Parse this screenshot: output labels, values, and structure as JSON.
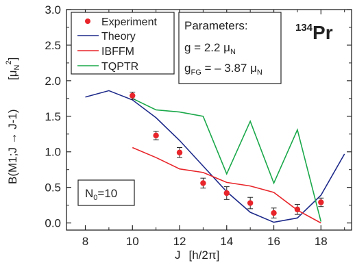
{
  "chart_data": {
    "type": "line",
    "nucleus": {
      "mass": "134",
      "symbol": "Pr"
    },
    "xlabel": {
      "main": "J",
      "unit": "[h/2π]"
    },
    "ylabel": {
      "main": "B(M1;J → J-1)",
      "unit_main": "[μ",
      "unit_sub": "N",
      "unit_sup": "2",
      "unit_close": "]"
    },
    "xlim": [
      7.2,
      19.3
    ],
    "ylim": [
      -0.1,
      3.0
    ],
    "xticks": [
      8,
      10,
      12,
      14,
      16,
      18
    ],
    "xtick_labels": [
      "8",
      "10",
      "12",
      "14",
      "16",
      "18"
    ],
    "yticks": [
      0.0,
      0.5,
      1.0,
      1.5,
      2.0,
      2.5,
      3.0
    ],
    "ytick_labels": [
      "0.0",
      "0.5",
      "1.0",
      "1.5",
      "2.0",
      "2.5",
      "3.0"
    ],
    "series": [
      {
        "name": "Experiment",
        "kind": "points",
        "color": "#e8252a",
        "x": [
          10,
          11,
          12,
          13,
          14,
          15,
          16,
          17,
          18
        ],
        "y": [
          1.79,
          1.23,
          0.99,
          0.56,
          0.42,
          0.28,
          0.14,
          0.19,
          0.29
        ],
        "err": [
          0.05,
          0.06,
          0.07,
          0.07,
          0.09,
          0.08,
          0.07,
          0.07,
          0.06
        ]
      },
      {
        "name": "Theory",
        "kind": "line",
        "color": "#1d2a8a",
        "x": [
          8,
          9,
          10,
          11,
          12,
          13,
          14,
          15,
          16,
          17,
          18,
          19
        ],
        "y": [
          1.77,
          1.86,
          1.73,
          1.48,
          1.16,
          0.8,
          0.44,
          0.15,
          0.01,
          0.07,
          0.39,
          0.97
        ]
      },
      {
        "name": "IBFFM",
        "kind": "line",
        "color": "#e8252a",
        "x": [
          10,
          11,
          12,
          13,
          14,
          15,
          16,
          17,
          18
        ],
        "y": [
          1.06,
          0.92,
          0.76,
          0.71,
          0.57,
          0.52,
          0.43,
          0.18,
          0.0
        ]
      },
      {
        "name": "TQPTR",
        "kind": "line",
        "color": "#1aa84a",
        "x": [
          10,
          11,
          12,
          13,
          14,
          15,
          16,
          17,
          18
        ],
        "y": [
          1.75,
          1.59,
          1.56,
          1.5,
          0.69,
          1.43,
          0.56,
          1.31,
          0.02
        ]
      }
    ],
    "legend_placement": "top-left",
    "parameters": {
      "title": "Parameters:",
      "g_label": "g = 2.2 μ",
      "g_sub": "N",
      "gfg_label": "g",
      "gfg_sub": "FG",
      "gfg_value": " = – 3.87 μ",
      "gfg_value_sub": "N"
    },
    "n0": {
      "label": "N",
      "sub": "0",
      "value": "=10"
    }
  }
}
